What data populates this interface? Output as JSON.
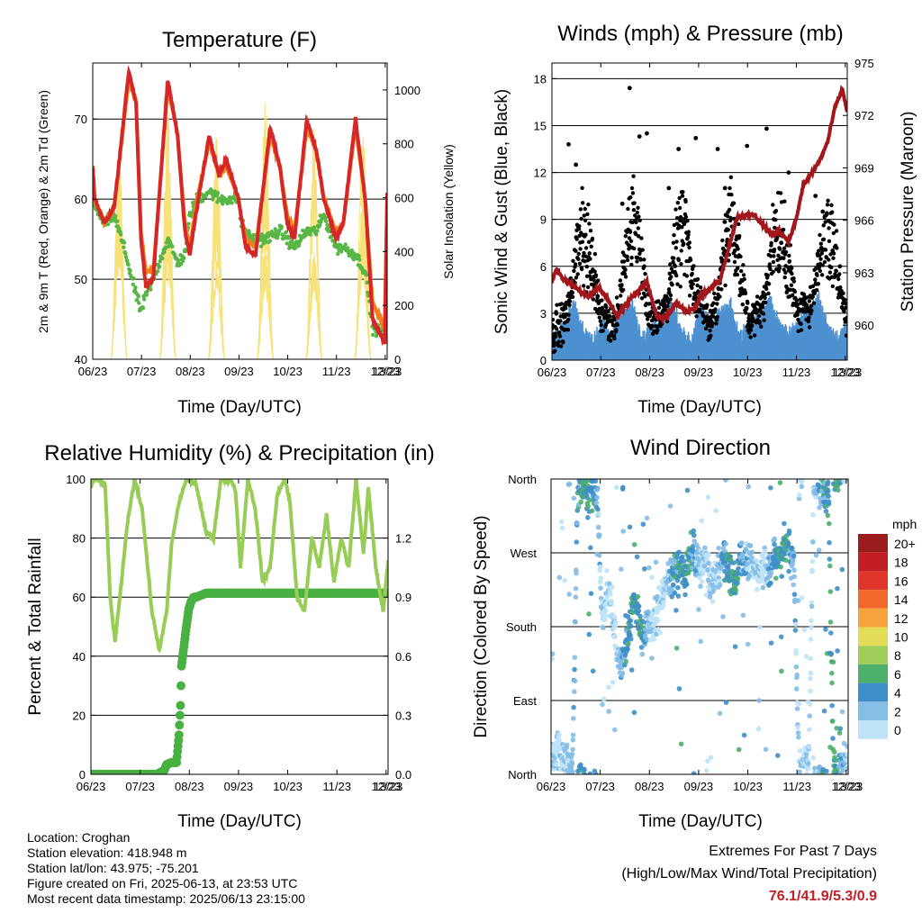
{
  "panels": {
    "temperature": {
      "title": "Temperature (F)",
      "ylabel_left": "2m & 9m T (Red, Orange) & 2m Td (Green)",
      "ylabel_right": "Solar Insolation (Yellow)",
      "xlabel": "Time (Day/UTC)"
    },
    "winds": {
      "title": "Winds (mph) & Pressure (mb)",
      "ylabel_left": "Sonic Wind & Gust (Blue, Black)",
      "ylabel_right": "Station Pressure (Maroon)",
      "xlabel": "Time (Day/UTC)"
    },
    "humidity": {
      "title": "Relative Humidity (%) & Precipitation (in)",
      "ylabel_left": "Percent & Total Rainfall",
      "xlabel": "Time (Day/UTC)"
    },
    "direction": {
      "title": "Wind Direction",
      "ylabel_left": "Direction (Colored By Speed)",
      "xlabel": "Time (Day/UTC)"
    }
  },
  "colorbar": {
    "unit": "mph",
    "labels": [
      "20+",
      "18",
      "16",
      "14",
      "12",
      "10",
      "8",
      "6",
      "4",
      "2",
      "0"
    ],
    "colors": [
      "#9b1c1c",
      "#c41e25",
      "#e0352a",
      "#ef6a2a",
      "#f7a33d",
      "#e3dc56",
      "#9fcf5a",
      "#4caf6a",
      "#3e8fc9",
      "#84bde6",
      "#bfe3f7"
    ]
  },
  "info": {
    "location": "Location: Croghan",
    "elevation": "Station elevation: 418.948 m",
    "latlon": "Station lat/lon: 43.975; -75.201",
    "created": "Figure created on Fri, 2025-06-13, at 23:53 UTC",
    "recent": "Most recent data timestamp: 2025/06/13 23:15:00"
  },
  "extremes": {
    "line1": "Extremes For Past 7 Days",
    "line2": "(High/Low/Max Wind/Total Precipitation)",
    "values": "76.1/41.9/5.3/0.9"
  },
  "chart_data": [
    {
      "type": "line",
      "title": "Temperature (F)",
      "xlabel": "Time (Day/UTC)",
      "ylabel": "2m & 9m T (Red, Orange) & 2m Td (Green)",
      "ylabel_right": "Solar Insolation (Yellow)",
      "x_ticks": [
        "06/23",
        "07/23",
        "08/23",
        "09/23",
        "10/23",
        "11/23",
        "12/23",
        "13/23"
      ],
      "ylim": [
        40,
        77
      ],
      "yticks": [
        40,
        50,
        60,
        70
      ],
      "ylim_right": [
        0,
        1100
      ],
      "yticks_right": [
        0,
        200,
        400,
        600,
        800,
        1000
      ],
      "colors": {
        "t2m": "#d62728",
        "t9m": "#f07f1e",
        "td": "#59b646",
        "solar": "#f7e27a"
      },
      "series": [
        {
          "x": [
            6.96,
            7.0,
            7.2,
            7.4,
            7.7,
            7.85,
            7.95,
            8.05,
            8.2,
            8.5,
            8.7,
            8.85,
            8.95,
            9.1,
            9.35,
            9.55,
            9.7,
            9.95,
            10.0,
            10.1,
            10.3,
            10.6,
            10.8,
            10.95,
            11.1,
            11.35,
            11.55,
            11.7,
            11.95,
            12.1,
            12.35,
            12.55,
            12.7,
            12.95,
            13.0
          ],
          "values": [
            64,
            60,
            57,
            59,
            76,
            72,
            55,
            49,
            50,
            75,
            68,
            56,
            53,
            59,
            68,
            63,
            65,
            60,
            58,
            54,
            53,
            69,
            64,
            57,
            55,
            70,
            66,
            60,
            55,
            57,
            70,
            60,
            45,
            42,
            61
          ]
        },
        {
          "x": [
            6.96,
            7.0,
            7.2,
            7.4,
            7.7,
            7.85,
            7.95,
            8.05,
            8.2,
            8.5,
            8.7,
            8.85,
            8.95,
            9.1,
            9.35,
            9.55,
            9.7,
            9.95,
            10.0,
            10.1,
            10.3,
            10.6,
            10.8,
            10.95,
            11.1,
            11.35,
            11.55,
            11.7,
            11.95,
            12.1,
            12.35,
            12.55,
            12.7,
            12.95,
            13.0
          ],
          "values": [
            64,
            60,
            57,
            59,
            75,
            72,
            56,
            51,
            51,
            74,
            68,
            57,
            54,
            60,
            67,
            63,
            64,
            60,
            58,
            55,
            54,
            68,
            64,
            58,
            56,
            69,
            66,
            60,
            56,
            57,
            69,
            60,
            47,
            44,
            60
          ]
        },
        {
          "x": [
            6.96,
            7.0,
            7.2,
            7.4,
            7.6,
            7.85,
            7.95,
            8.05,
            8.2,
            8.5,
            8.7,
            8.85,
            8.95,
            9.1,
            9.35,
            9.55,
            9.7,
            9.95,
            10.0,
            10.2,
            10.5,
            10.8,
            10.95,
            11.1,
            11.35,
            11.55,
            11.7,
            11.95,
            12.1,
            12.35,
            12.55,
            12.7,
            12.95,
            13.0
          ],
          "values": [
            64,
            59,
            57,
            58,
            54,
            48,
            46,
            48,
            50,
            55,
            52,
            53,
            58,
            60,
            61,
            60,
            60,
            60,
            57,
            55,
            55,
            56,
            55,
            54,
            56,
            56,
            58,
            54,
            54,
            53,
            51,
            44,
            43,
            46
          ]
        },
        {
          "x": [
            7.33,
            7.5,
            7.67,
            8.33,
            8.5,
            8.67,
            9.33,
            9.5,
            9.67,
            10.33,
            10.5,
            10.67,
            11.33,
            11.5,
            11.67,
            12.33,
            12.5,
            12.67
          ],
          "values": [
            0,
            850,
            0,
            0,
            1000,
            0,
            0,
            900,
            0,
            0,
            1050,
            0,
            0,
            950,
            0,
            0,
            1000,
            0
          ]
        }
      ]
    },
    {
      "type": "scatter",
      "title": "Winds (mph) & Pressure (mb)",
      "xlabel": "Time (Day/UTC)",
      "ylabel": "Sonic Wind & Gust (Blue, Black)",
      "ylabel_right": "Station Pressure (Maroon)",
      "x_ticks": [
        "06/23",
        "07/23",
        "08/23",
        "09/23",
        "10/23",
        "11/23",
        "12/23",
        "13/23"
      ],
      "ylim": [
        0,
        19
      ],
      "yticks": [
        0,
        3,
        6,
        9,
        12,
        15,
        18
      ],
      "ylim_right": [
        958,
        975
      ],
      "yticks_right": [
        960,
        963,
        966,
        969,
        972,
        975
      ],
      "colors": {
        "wind": "#4e91d0",
        "gust": "#000000",
        "pressure": "#a3161b"
      },
      "series": [
        {
          "x": [
            6.96,
            7.2,
            7.4,
            7.6,
            7.8,
            8.0,
            8.2,
            8.4,
            8.6,
            8.8,
            9.0,
            9.2,
            9.4,
            9.6,
            9.8,
            10.0,
            10.2,
            10.4,
            10.6,
            10.8,
            11.0,
            11.2,
            11.4,
            11.6,
            11.8,
            12.0,
            12.2,
            12.4,
            12.6,
            12.8,
            13.0
          ],
          "values": [
            0.5,
            1.5,
            3.0,
            1.5,
            0.5,
            1.8,
            1.0,
            2.5,
            3.0,
            0.8,
            1.5,
            2.0,
            3.0,
            1.5,
            0.5,
            3.0,
            1.5,
            2.5,
            3.0,
            1.0,
            1.5,
            2.0,
            3.5,
            1.8,
            1.0,
            2.0,
            2.5,
            3.5,
            1.5,
            1.0,
            1.5
          ]
        },
        {
          "x": [
            7.3,
            7.45,
            7.6,
            8.4,
            8.55,
            8.75,
            8.9,
            9.35,
            9.55,
            9.65,
            9.9,
            10.35,
            10.5,
            10.7,
            10.95,
            11.35,
            11.5,
            11.65,
            11.8,
            12.35,
            12.5,
            12.7,
            12.85
          ],
          "values": [
            13.8,
            12.5,
            8.0,
            10.0,
            17.4,
            14.3,
            14.5,
            11.0,
            13.5,
            9.0,
            14.2,
            13.5,
            11.0,
            7.0,
            13.7,
            14.8,
            9.0,
            7.5,
            12.0,
            10.5,
            9.5,
            7.0,
            6.0
          ]
        },
        {
          "x": [
            6.96,
            7.05,
            7.2,
            7.35,
            7.5,
            7.7,
            7.9,
            8.1,
            8.3,
            8.5,
            8.7,
            8.9,
            9.1,
            9.3,
            9.5,
            9.7,
            9.9,
            10.0,
            10.2,
            10.4,
            10.6,
            10.75,
            10.9,
            11.1,
            11.25,
            11.45,
            11.6,
            11.8,
            11.95,
            12.1,
            12.3,
            12.45,
            12.6,
            12.75,
            12.9,
            13.0
          ],
          "values": [
            962.5,
            963.2,
            962.6,
            962.4,
            962.0,
            961.6,
            962.2,
            961.5,
            960.5,
            961.3,
            961.9,
            962.5,
            960.5,
            960.4,
            961.3,
            960.8,
            961.0,
            961.7,
            962.1,
            962.6,
            964.7,
            966.2,
            966.3,
            966.3,
            965.8,
            965.2,
            965.4,
            964.8,
            966.0,
            968.0,
            968.8,
            969.5,
            970.5,
            972.5,
            973.5,
            972.2
          ]
        }
      ]
    },
    {
      "type": "line",
      "title": "Relative Humidity (%) & Precipitation (in)",
      "xlabel": "Time (Day/UTC)",
      "ylabel": "Percent & Total Rainfall",
      "x_ticks": [
        "06/23",
        "07/23",
        "08/23",
        "09/23",
        "10/23",
        "11/23",
        "12/23",
        "13/23"
      ],
      "ylim": [
        0,
        100
      ],
      "yticks": [
        0,
        20,
        40,
        60,
        80,
        100
      ],
      "ylim_right": [
        0,
        1.5
      ],
      "yticks_right": [
        0.0,
        0.3,
        0.6,
        0.9,
        1.2
      ],
      "colors": {
        "rh": "#97cd56",
        "precip": "#49b142"
      },
      "series": [
        {
          "x": [
            6.96,
            7.0,
            7.05,
            7.1,
            7.25,
            7.35,
            7.45,
            7.55,
            7.7,
            7.85,
            8.0,
            8.2,
            8.35,
            8.5,
            8.6,
            8.75,
            8.9,
            9.0,
            9.1,
            9.3,
            9.45,
            9.6,
            9.7,
            9.8,
            9.9,
            10.0,
            10.15,
            10.3,
            10.45,
            10.6,
            10.75,
            10.9,
            11.0,
            11.15,
            11.3,
            11.45,
            11.6,
            11.75,
            11.9,
            12.05,
            12.2,
            12.35,
            12.5,
            12.6,
            12.75,
            12.9,
            13.0
          ],
          "values": [
            97,
            100,
            100,
            100,
            98,
            60,
            45,
            60,
            85,
            100,
            90,
            55,
            42,
            55,
            78,
            92,
            100,
            99,
            98,
            82,
            80,
            100,
            99,
            100,
            96,
            70,
            100,
            90,
            65,
            70,
            95,
            100,
            93,
            60,
            55,
            80,
            70,
            88,
            65,
            80,
            70,
            100,
            75,
            97,
            70,
            55,
            72
          ]
        },
        {
          "x": [
            6.96,
            7.5,
            8.0,
            8.3,
            8.45,
            8.5,
            8.6,
            8.7,
            8.75,
            8.78,
            8.8,
            8.85,
            8.9,
            8.95,
            9.0,
            9.05,
            9.1,
            9.2,
            9.3,
            9.4,
            10.0,
            11.0,
            12.0,
            13.0
          ],
          "values": [
            0.0,
            0.0,
            0.0,
            0.0,
            0.02,
            0.05,
            0.06,
            0.06,
            0.2,
            0.35,
            0.55,
            0.65,
            0.75,
            0.84,
            0.88,
            0.9,
            0.9,
            0.91,
            0.92,
            0.92,
            0.92,
            0.92,
            0.92,
            0.92
          ]
        }
      ]
    },
    {
      "type": "scatter",
      "title": "Wind Direction",
      "xlabel": "Time (Day/UTC)",
      "ylabel": "Direction (Colored By Speed)",
      "x_ticks": [
        "06/23",
        "07/23",
        "08/23",
        "09/23",
        "10/23",
        "11/23",
        "12/23",
        "13/23"
      ],
      "y_ticks": [
        "North",
        "East",
        "South",
        "West",
        "North"
      ],
      "ylim": [
        0,
        360
      ],
      "series": [
        {
          "x": [
            6.96,
            7.1,
            7.25,
            7.4,
            7.5,
            7.6,
            7.75,
            7.9,
            8.0,
            8.1,
            8.2,
            8.3,
            8.4,
            8.5,
            8.6,
            8.7,
            8.8,
            8.9,
            9.0,
            9.1,
            9.2,
            9.3,
            9.4,
            9.5,
            9.6,
            9.7,
            9.8,
            9.9,
            10.0,
            10.1,
            10.2,
            10.3,
            10.4,
            10.5,
            10.6,
            10.7,
            10.8,
            10.9,
            11.0,
            11.1,
            11.2,
            11.3,
            11.4,
            11.5,
            11.6,
            11.7,
            11.8,
            11.9,
            12.0,
            12.1,
            12.2,
            12.3,
            12.4,
            12.5,
            12.6,
            12.7,
            12.8,
            12.9,
            13.0
          ],
          "values": [
            20,
            30,
            15,
            10,
            350,
            355,
            340,
            345,
            180,
            230,
            200,
            150,
            130,
            160,
            200,
            210,
            170,
            180,
            185,
            190,
            220,
            230,
            250,
            240,
            250,
            240,
            270,
            260,
            250,
            265,
            230,
            240,
            255,
            260,
            245,
            230,
            270,
            260,
            265,
            250,
            245,
            260,
            240,
            270,
            260,
            280,
            275,
            250,
            10,
            20,
            15,
            355,
            350,
            345,
            340,
            10,
            5,
            15,
            20
          ]
        }
      ]
    }
  ]
}
